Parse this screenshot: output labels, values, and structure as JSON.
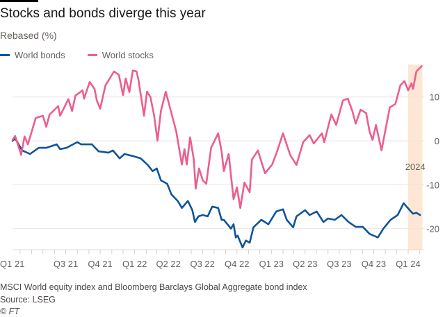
{
  "title": "Stocks and bonds diverge this year",
  "subtitle": "Rebased (%)",
  "footer": {
    "note": "MSCI World equity index and Bloomberg Barclays Global Aggregate bond index",
    "source": "Source: LSEG",
    "copyright": "© FT"
  },
  "chart_data": {
    "type": "line",
    "title": "Stocks and bonds diverge this year",
    "ylabel": "Rebased (%)",
    "ylim": [
      -25,
      17
    ],
    "yticks": [
      10,
      0,
      -10,
      -20
    ],
    "xtick_labels": [
      {
        "label": "Q1 21",
        "date": "2021-01-01"
      },
      {
        "label": "Q3 21",
        "date": "2021-07-01"
      },
      {
        "label": "Q4 21",
        "date": "2021-10-01"
      },
      {
        "label": "Q1 22",
        "date": "2022-01-01"
      },
      {
        "label": "Q2 22",
        "date": "2022-04-01"
      },
      {
        "label": "Q3 22",
        "date": "2022-07-01"
      },
      {
        "label": "Q4 22",
        "date": "2022-10-01"
      },
      {
        "label": "Q1 23",
        "date": "2023-01-01"
      },
      {
        "label": "Q2 23",
        "date": "2023-04-01"
      },
      {
        "label": "Q3 23",
        "date": "2023-07-01"
      },
      {
        "label": "Q4 23",
        "date": "2023-10-01"
      },
      {
        "label": "Q1 24",
        "date": "2024-01-01"
      }
    ],
    "grid": true,
    "legend_placement": "top-left",
    "highlight": {
      "label": "2024",
      "start": "2024-01-01",
      "end": "2024-02-08",
      "color": "#fde3cc"
    },
    "series": [
      {
        "name": "World bonds",
        "color": "#0f5499",
        "points": [
          [
            "2021-02-09",
            0
          ],
          [
            "2021-02-16",
            0.5
          ],
          [
            "2021-03-07",
            -2.2
          ],
          [
            "2021-03-28",
            -3
          ],
          [
            "2021-04-20",
            -1.6
          ],
          [
            "2021-05-10",
            -1.6
          ],
          [
            "2021-06-07",
            -0.8
          ],
          [
            "2021-06-16",
            -1.9
          ],
          [
            "2021-07-03",
            -1.6
          ],
          [
            "2021-08-01",
            -0.3
          ],
          [
            "2021-08-11",
            -0.8
          ],
          [
            "2021-09-09",
            -0.8
          ],
          [
            "2021-09-27",
            -2.4
          ],
          [
            "2021-10-23",
            -2.7
          ],
          [
            "2021-11-04",
            -2.2
          ],
          [
            "2021-11-22",
            -4
          ],
          [
            "2021-12-05",
            -3
          ],
          [
            "2021-12-29",
            -3.5
          ],
          [
            "2022-01-17",
            -4
          ],
          [
            "2022-02-05",
            -5.5
          ],
          [
            "2022-02-18",
            -6.9
          ],
          [
            "2022-03-01",
            -6.3
          ],
          [
            "2022-03-12",
            -9
          ],
          [
            "2022-03-29",
            -9.8
          ],
          [
            "2022-04-09",
            -12.2
          ],
          [
            "2022-04-26",
            -13.7
          ],
          [
            "2022-05-07",
            -15.3
          ],
          [
            "2022-05-23",
            -13.7
          ],
          [
            "2022-06-04",
            -15.8
          ],
          [
            "2022-06-11",
            -18.5
          ],
          [
            "2022-06-20",
            -17.2
          ],
          [
            "2022-07-02",
            -16.9
          ],
          [
            "2022-07-15",
            -17.2
          ],
          [
            "2022-07-27",
            -15
          ],
          [
            "2022-08-12",
            -15.3
          ],
          [
            "2022-08-21",
            -18
          ],
          [
            "2022-08-27",
            -18
          ],
          [
            "2022-09-15",
            -20
          ],
          [
            "2022-09-22",
            -19
          ],
          [
            "2022-09-28",
            -22
          ],
          [
            "2022-10-03",
            -21.6
          ],
          [
            "2022-10-16",
            -24.3
          ],
          [
            "2022-10-25",
            -22.7
          ],
          [
            "2022-11-04",
            -23.2
          ],
          [
            "2022-11-14",
            -19.7
          ],
          [
            "2022-12-05",
            -18
          ],
          [
            "2022-12-24",
            -19
          ],
          [
            "2023-01-14",
            -16.1
          ],
          [
            "2023-02-01",
            -15.6
          ],
          [
            "2023-02-11",
            -18
          ],
          [
            "2023-02-28",
            -19.7
          ],
          [
            "2023-03-09",
            -17.2
          ],
          [
            "2023-04-01",
            -15.8
          ],
          [
            "2023-04-13",
            -16.9
          ],
          [
            "2023-05-02",
            -16.1
          ],
          [
            "2023-05-20",
            -18.5
          ],
          [
            "2023-06-01",
            -17.7
          ],
          [
            "2023-06-19",
            -18
          ],
          [
            "2023-07-07",
            -16.9
          ],
          [
            "2023-07-26",
            -18.5
          ],
          [
            "2023-08-14",
            -19.6
          ],
          [
            "2023-09-02",
            -19.6
          ],
          [
            "2023-09-20",
            -21.2
          ],
          [
            "2023-10-12",
            -22
          ],
          [
            "2023-10-27",
            -20
          ],
          [
            "2023-11-15",
            -18
          ],
          [
            "2023-12-04",
            -16.9
          ],
          [
            "2023-12-20",
            -14.2
          ],
          [
            "2024-01-05",
            -15.8
          ],
          [
            "2024-01-14",
            -16.6
          ],
          [
            "2024-01-23",
            -16.4
          ],
          [
            "2024-02-02",
            -16.9
          ]
        ]
      },
      {
        "name": "World stocks",
        "color": "#eb5e8d",
        "points": [
          [
            "2021-02-09",
            0.2
          ],
          [
            "2021-02-16",
            1.1
          ],
          [
            "2021-03-04",
            -3.2
          ],
          [
            "2021-03-13",
            1.0
          ],
          [
            "2021-03-22",
            -0.8
          ],
          [
            "2021-04-12",
            5.2
          ],
          [
            "2021-05-01",
            5.7
          ],
          [
            "2021-05-10",
            3.2
          ],
          [
            "2021-05-19",
            6.0
          ],
          [
            "2021-06-11",
            7.9
          ],
          [
            "2021-06-16",
            5.7
          ],
          [
            "2021-07-08",
            9.5
          ],
          [
            "2021-07-18",
            6.8
          ],
          [
            "2021-07-27",
            10.3
          ],
          [
            "2021-08-15",
            11.5
          ],
          [
            "2021-08-19",
            9.6
          ],
          [
            "2021-09-03",
            13.4
          ],
          [
            "2021-09-16",
            11.8
          ],
          [
            "2021-09-22",
            9.2
          ],
          [
            "2021-10-01",
            7.3
          ],
          [
            "2021-10-15",
            12.6
          ],
          [
            "2021-11-07",
            15.8
          ],
          [
            "2021-11-20",
            15.0
          ],
          [
            "2021-12-01",
            10.4
          ],
          [
            "2021-12-08",
            14.2
          ],
          [
            "2021-12-18",
            11.1
          ],
          [
            "2021-12-27",
            16.0
          ],
          [
            "2022-01-06",
            15.8
          ],
          [
            "2022-01-11",
            13.9
          ],
          [
            "2022-01-26",
            5.7
          ],
          [
            "2022-02-03",
            11.2
          ],
          [
            "2022-02-12",
            10
          ],
          [
            "2022-02-22",
            5.7
          ],
          [
            "2022-03-03",
            0
          ],
          [
            "2022-03-12",
            6.8
          ],
          [
            "2022-03-25",
            11.2
          ],
          [
            "2022-04-09",
            6.3
          ],
          [
            "2022-04-22",
            2.1
          ],
          [
            "2022-05-07",
            -5.4
          ],
          [
            "2022-05-14",
            -1.9
          ],
          [
            "2022-05-20",
            -5.4
          ],
          [
            "2022-05-29",
            0.8
          ],
          [
            "2022-06-08",
            -4.3
          ],
          [
            "2022-06-13",
            -10.9
          ],
          [
            "2022-06-22",
            -6.3
          ],
          [
            "2022-07-02",
            -9
          ],
          [
            "2022-07-11",
            -9.8
          ],
          [
            "2022-07-24",
            -1.6
          ],
          [
            "2022-08-12",
            1.7
          ],
          [
            "2022-08-21",
            -2.4
          ],
          [
            "2022-08-27",
            -6.9
          ],
          [
            "2022-09-09",
            -3
          ],
          [
            "2022-09-22",
            -13.3
          ],
          [
            "2022-10-01",
            -10.6
          ],
          [
            "2022-10-10",
            -15.3
          ],
          [
            "2022-10-21",
            -9.5
          ],
          [
            "2022-11-04",
            -11.7
          ],
          [
            "2022-11-10",
            -4.3
          ],
          [
            "2022-11-26",
            -2.2
          ],
          [
            "2022-12-15",
            -7.4
          ],
          [
            "2023-01-03",
            -5.4
          ],
          [
            "2023-01-17",
            -2.2
          ],
          [
            "2023-02-01",
            1.7
          ],
          [
            "2023-02-20",
            -3.2
          ],
          [
            "2023-03-09",
            -5.5
          ],
          [
            "2023-03-27",
            -0.3
          ],
          [
            "2023-04-13",
            1.3
          ],
          [
            "2023-04-24",
            -0.6
          ],
          [
            "2023-05-16",
            1.7
          ],
          [
            "2023-05-22",
            -0.3
          ],
          [
            "2023-06-10",
            6.0
          ],
          [
            "2023-06-23",
            3.6
          ],
          [
            "2023-07-11",
            9.2
          ],
          [
            "2023-07-24",
            9.6
          ],
          [
            "2023-08-05",
            6.8
          ],
          [
            "2023-08-14",
            3.9
          ],
          [
            "2023-08-27",
            7.1
          ],
          [
            "2023-09-11",
            6.3
          ],
          [
            "2023-09-20",
            2.1
          ],
          [
            "2023-09-28",
            0.2
          ],
          [
            "2023-10-07",
            3.6
          ],
          [
            "2023-10-22",
            -2.2
          ],
          [
            "2023-11-04",
            3.6
          ],
          [
            "2023-11-13",
            7.6
          ],
          [
            "2023-11-28",
            8.4
          ],
          [
            "2023-12-11",
            12.6
          ],
          [
            "2023-12-22",
            13.6
          ],
          [
            "2024-01-01",
            11.5
          ],
          [
            "2024-01-10",
            13.1
          ],
          [
            "2024-01-14",
            11.8
          ],
          [
            "2024-01-23",
            15.8
          ],
          [
            "2024-02-06",
            17
          ]
        ]
      }
    ]
  }
}
